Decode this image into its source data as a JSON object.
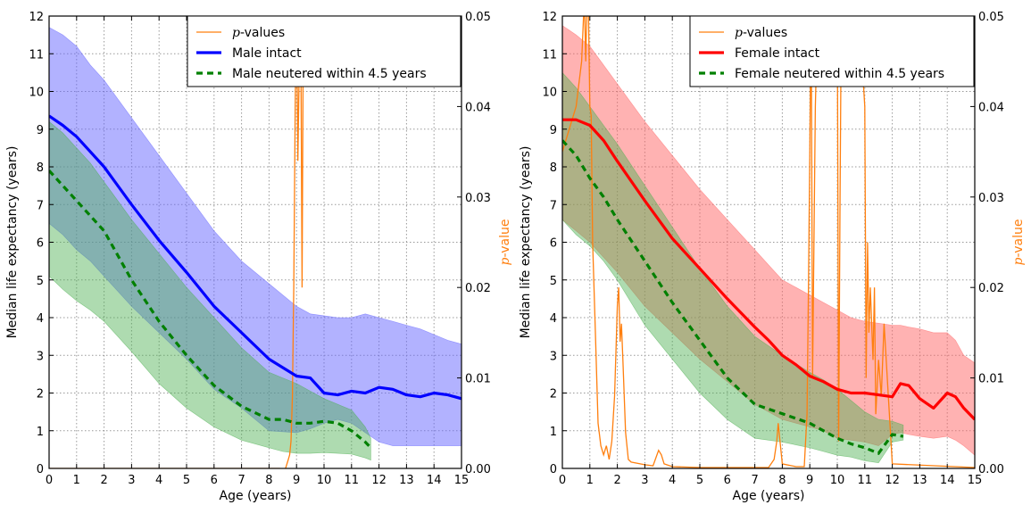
{
  "chart_data": [
    {
      "type": "line",
      "xlabel": "Age (years)",
      "ylabel": "Median life expectancy (years)",
      "y2label_italic": "p",
      "y2label_rest": "-value",
      "xlim": [
        0,
        15
      ],
      "ylim": [
        0,
        12
      ],
      "y2lim": [
        0,
        0.05
      ],
      "xticks": [
        "0",
        "1",
        "2",
        "3",
        "4",
        "5",
        "6",
        "7",
        "8",
        "9",
        "10",
        "11",
        "12",
        "13",
        "14",
        "15"
      ],
      "yticks": [
        "0",
        "1",
        "2",
        "3",
        "4",
        "5",
        "6",
        "7",
        "8",
        "9",
        "10",
        "11",
        "12"
      ],
      "y2ticks": [
        "0.00",
        "0.01",
        "0.02",
        "0.03",
        "0.04",
        "0.05"
      ],
      "grid": true,
      "legend_position": "top-right",
      "colors": {
        "pvalue": "#ff7f0e",
        "main": "#0000ff",
        "neutered": "#008000",
        "band_main": "#6666ff",
        "band_neutered": "#4caf50"
      },
      "series": [
        {
          "name": "Male intact",
          "role": "main",
          "x": [
            0,
            0.5,
            1,
            1.5,
            2,
            3,
            4,
            5,
            6,
            7,
            8,
            9,
            9.5,
            10,
            10.5,
            11,
            11.5,
            12,
            12.5,
            13,
            13.5,
            14,
            14.5,
            15
          ],
          "y": [
            9.35,
            9.1,
            8.8,
            8.4,
            8.0,
            7.0,
            6.05,
            5.2,
            4.3,
            3.6,
            2.9,
            2.45,
            2.4,
            2.0,
            1.95,
            2.05,
            2.0,
            2.15,
            2.1,
            1.95,
            1.9,
            2.0,
            1.95,
            1.85
          ],
          "lower": [
            6.5,
            6.2,
            5.8,
            5.5,
            5.1,
            4.3,
            3.6,
            2.9,
            2.1,
            1.6,
            1.0,
            0.95,
            1.05,
            1.2,
            1.3,
            1.2,
            0.95,
            0.7,
            0.6,
            0.6,
            0.6,
            0.6,
            0.6,
            0.6
          ],
          "upper": [
            11.7,
            11.5,
            11.2,
            10.7,
            10.3,
            9.3,
            8.3,
            7.3,
            6.3,
            5.5,
            4.9,
            4.3,
            4.1,
            4.05,
            4.0,
            4.0,
            4.1,
            4.0,
            3.9,
            3.8,
            3.7,
            3.55,
            3.4,
            3.3
          ]
        },
        {
          "name": "Male neutered within 4.5 years",
          "role": "neutered",
          "x": [
            0,
            0.5,
            1,
            1.5,
            2,
            3,
            4,
            5,
            6,
            7,
            8,
            8.5,
            9,
            9.5,
            10,
            10.5,
            11,
            11.5,
            11.7
          ],
          "y": [
            7.9,
            7.5,
            7.1,
            6.7,
            6.3,
            5.0,
            3.9,
            3.0,
            2.2,
            1.65,
            1.3,
            1.3,
            1.2,
            1.2,
            1.25,
            1.2,
            1.0,
            0.7,
            0.55
          ],
          "lower": [
            5.1,
            4.75,
            4.45,
            4.2,
            3.9,
            3.1,
            2.25,
            1.6,
            1.1,
            0.75,
            0.55,
            0.45,
            0.4,
            0.4,
            0.42,
            0.4,
            0.38,
            0.28,
            0.22
          ],
          "upper": [
            9.2,
            8.9,
            8.5,
            8.1,
            7.6,
            6.6,
            5.7,
            4.8,
            4.0,
            3.2,
            2.55,
            2.4,
            2.25,
            2.05,
            1.85,
            1.7,
            1.55,
            1.1,
            0.8
          ]
        },
        {
          "name": "p-values",
          "role": "pvalue",
          "x": [
            0,
            8.4,
            8.6,
            8.7,
            8.75,
            8.8,
            8.85,
            8.9,
            8.95,
            9.0,
            9.05,
            9.1,
            9.15,
            9.2,
            9.25,
            9.3,
            9.4,
            15
          ],
          "y": [
            0,
            0,
            0,
            0.001,
            0.0015,
            0.003,
            0.008,
            0.02,
            0.04,
            0.052,
            0.034,
            0.045,
            0.052,
            0.02,
            0.052,
            0.052,
            0.052,
            0.052
          ],
          "segments": [
            [
              0,
              8.45
            ],
            [
              8.45,
              9.4
            ]
          ]
        }
      ],
      "legend": [
        {
          "key": "pvalue",
          "label_italic": "p",
          "label_rest": "-values"
        },
        {
          "key": "main",
          "label": "Male intact"
        },
        {
          "key": "neutered",
          "label": "Male neutered within 4.5 years"
        }
      ]
    },
    {
      "type": "line",
      "xlabel": "Age (years)",
      "ylabel": "Median life expectancy (years)",
      "y2label_italic": "p",
      "y2label_rest": "-value",
      "xlim": [
        0,
        15
      ],
      "ylim": [
        0,
        12
      ],
      "y2lim": [
        0,
        0.05
      ],
      "xticks": [
        "0",
        "1",
        "2",
        "3",
        "4",
        "5",
        "6",
        "7",
        "8",
        "9",
        "10",
        "11",
        "12",
        "13",
        "14",
        "15"
      ],
      "yticks": [
        "0",
        "1",
        "2",
        "3",
        "4",
        "5",
        "6",
        "7",
        "8",
        "9",
        "10",
        "11",
        "12"
      ],
      "y2ticks": [
        "0.00",
        "0.01",
        "0.02",
        "0.03",
        "0.04",
        "0.05"
      ],
      "grid": true,
      "legend_position": "top-right",
      "colors": {
        "pvalue": "#ff7f0e",
        "main": "#ff0000",
        "neutered": "#008000",
        "band_main": "#ff6666",
        "band_neutered": "#4caf50"
      },
      "series": [
        {
          "name": "Female intact",
          "role": "main",
          "x": [
            0,
            0.5,
            1,
            1.5,
            2,
            3,
            4,
            5,
            6,
            7,
            7.5,
            8,
            8.5,
            9,
            9.5,
            10,
            10.5,
            11,
            11.5,
            12,
            12.3,
            12.6,
            13,
            13.5,
            14,
            14.3,
            14.6,
            15
          ],
          "y": [
            9.25,
            9.25,
            9.1,
            8.7,
            8.15,
            7.1,
            6.1,
            5.3,
            4.5,
            3.75,
            3.4,
            3.0,
            2.75,
            2.45,
            2.3,
            2.1,
            2.0,
            2.0,
            1.95,
            1.9,
            2.25,
            2.2,
            1.85,
            1.6,
            2.0,
            1.9,
            1.6,
            1.3
          ],
          "lower": [
            6.6,
            6.3,
            6.0,
            5.6,
            5.2,
            4.3,
            3.6,
            2.9,
            2.3,
            1.7,
            1.5,
            1.3,
            1.2,
            1.1,
            1.0,
            0.8,
            0.75,
            0.7,
            0.6,
            0.9,
            0.95,
            0.9,
            0.85,
            0.8,
            0.85,
            0.75,
            0.6,
            0.35
          ],
          "upper": [
            11.75,
            11.5,
            11.2,
            10.7,
            10.2,
            9.2,
            8.3,
            7.4,
            6.6,
            5.8,
            5.4,
            5.0,
            4.8,
            4.6,
            4.4,
            4.2,
            4.0,
            3.9,
            3.85,
            3.8,
            3.8,
            3.75,
            3.7,
            3.6,
            3.6,
            3.4,
            3.0,
            2.8
          ]
        },
        {
          "name": "Female neutered within 4.5 years",
          "role": "neutered",
          "x": [
            0,
            0.5,
            1,
            1.5,
            2,
            3,
            4,
            5,
            6,
            7,
            8,
            9,
            9.5,
            10,
            10.5,
            11,
            11.5,
            12,
            12.4
          ],
          "y": [
            8.7,
            8.3,
            7.7,
            7.2,
            6.6,
            5.5,
            4.4,
            3.4,
            2.4,
            1.7,
            1.45,
            1.2,
            1.0,
            0.8,
            0.65,
            0.55,
            0.4,
            0.9,
            0.85
          ],
          "lower": [
            6.6,
            6.2,
            5.9,
            5.5,
            5.0,
            3.8,
            2.9,
            2.0,
            1.3,
            0.8,
            0.7,
            0.55,
            0.45,
            0.35,
            0.3,
            0.2,
            0.15,
            0.7,
            0.75
          ],
          "upper": [
            10.5,
            10.1,
            9.6,
            9.1,
            8.6,
            7.5,
            6.4,
            5.3,
            4.3,
            3.5,
            3.0,
            2.55,
            2.35,
            2.1,
            1.8,
            1.5,
            1.3,
            1.25,
            1.15
          ]
        },
        {
          "name": "p-values",
          "role": "pvalue",
          "x": [
            0,
            0.5,
            0.7,
            0.8,
            0.85,
            0.9,
            0.95,
            1.0,
            1.05,
            1.1,
            1.2,
            1.3,
            1.4,
            1.5,
            1.6,
            1.7,
            1.8,
            1.9,
            2.0,
            2.05,
            2.1,
            2.15,
            2.2,
            2.3,
            2.4,
            2.5,
            3.0,
            3.3,
            3.5,
            3.6,
            3.7,
            4.0,
            5.0,
            7.5,
            7.7,
            7.8,
            7.85,
            7.9,
            8.0,
            8.5,
            8.8,
            8.9,
            8.95,
            9.0,
            9.05,
            9.1,
            9.2,
            9.3,
            9.4,
            9.5,
            9.6,
            9.8,
            10.0,
            10.05,
            10.1,
            10.15,
            10.2,
            10.3,
            10.35,
            10.4,
            10.5,
            10.6,
            10.7,
            10.8,
            11.0,
            11.05,
            11.1,
            11.15,
            11.2,
            11.3,
            11.35,
            11.4,
            11.5,
            11.6,
            11.7,
            11.8,
            12.0,
            15
          ],
          "y": [
            0.035,
            0.04,
            0.045,
            0.052,
            0.045,
            0.052,
            0.05,
            0.04,
            0.039,
            0.025,
            0.015,
            0.005,
            0.0025,
            0.0015,
            0.0025,
            0.001,
            0.003,
            0.008,
            0.018,
            0.02,
            0.014,
            0.016,
            0.012,
            0.004,
            0.001,
            0.0007,
            0.0004,
            0.0003,
            0.002,
            0.0015,
            0.0005,
            0.0002,
            0.0001,
            0.0001,
            0.001,
            0.003,
            0.005,
            0.0035,
            0.0005,
            0.0002,
            0.0002,
            0.006,
            0.02,
            0.035,
            0.052,
            0.01,
            0.04,
            0.052,
            0.052,
            0.052,
            0.052,
            0.052,
            0.052,
            0.003,
            0.03,
            0.052,
            0.045,
            0.052,
            0.052,
            0.045,
            0.052,
            0.052,
            0.052,
            0.05,
            0.04,
            0.01,
            0.025,
            0.015,
            0.02,
            0.012,
            0.02,
            0.006,
            0.012,
            0.008,
            0.016,
            0.011,
            0.0005,
            0.0001
          ],
          "segments": [
            [
              0,
              15
            ]
          ]
        }
      ],
      "legend": [
        {
          "key": "pvalue",
          "label_italic": "p",
          "label_rest": "-values"
        },
        {
          "key": "main",
          "label": "Female intact"
        },
        {
          "key": "neutered",
          "label": "Female neutered within 4.5 years"
        }
      ]
    }
  ]
}
